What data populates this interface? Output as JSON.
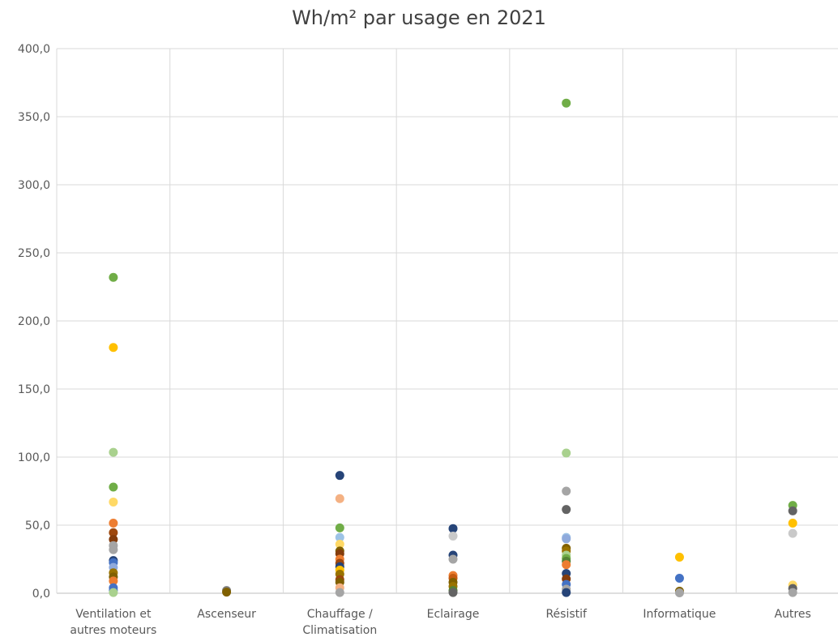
{
  "chart_data": {
    "type": "scatter",
    "title": "Wh/m² par usage en 2021",
    "xlabel": "",
    "ylabel": "",
    "ylim": [
      0,
      400
    ],
    "yticks": [
      "0,0",
      "50,0",
      "100,0",
      "150,0",
      "200,0",
      "250,0",
      "300,0",
      "350,0",
      "400,0"
    ],
    "ytick_values": [
      0,
      50,
      100,
      150,
      200,
      250,
      300,
      350,
      400
    ],
    "grid": true,
    "legend": "none",
    "categories": [
      [
        "Ventilation et",
        "autres moteurs"
      ],
      [
        "Ascenseur"
      ],
      [
        "Chauffage /",
        "Climatisation"
      ],
      [
        "Eclairage"
      ],
      [
        "Résistif"
      ],
      [
        "Informatique"
      ],
      [
        "Autres"
      ]
    ],
    "points": [
      {
        "category": 0,
        "y": 232,
        "color": "#70ad47"
      },
      {
        "category": 0,
        "y": 180.5,
        "color": "#ffc000"
      },
      {
        "category": 0,
        "y": 103.5,
        "color": "#a9d18e"
      },
      {
        "category": 0,
        "y": 78,
        "color": "#70ad47"
      },
      {
        "category": 0,
        "y": 67,
        "color": "#ffd966"
      },
      {
        "category": 0,
        "y": 51.5,
        "color": "#ed7d31"
      },
      {
        "category": 0,
        "y": 44.5,
        "color": "#9e480e"
      },
      {
        "category": 0,
        "y": 39.5,
        "color": "#843c0c"
      },
      {
        "category": 0,
        "y": 35,
        "color": "#a5a5a5"
      },
      {
        "category": 0,
        "y": 32,
        "color": "#a5a5a5"
      },
      {
        "category": 0,
        "y": 24,
        "color": "#264478"
      },
      {
        "category": 0,
        "y": 22.5,
        "color": "#4472c4"
      },
      {
        "category": 0,
        "y": 19,
        "color": "#8faadc"
      },
      {
        "category": 0,
        "y": 15,
        "color": "#997300"
      },
      {
        "category": 0,
        "y": 12,
        "color": "#806000"
      },
      {
        "category": 0,
        "y": 9,
        "color": "#ed7d31"
      },
      {
        "category": 0,
        "y": 4,
        "color": "#4472c4"
      },
      {
        "category": 0,
        "y": 2,
        "color": "#4472c4"
      },
      {
        "category": 0,
        "y": 0.5,
        "color": "#a9d18e"
      },
      {
        "category": 1,
        "y": 2,
        "color": "#7f7f7f"
      },
      {
        "category": 1,
        "y": 0.8,
        "color": "#806000"
      },
      {
        "category": 2,
        "y": 86.5,
        "color": "#264478"
      },
      {
        "category": 2,
        "y": 69.5,
        "color": "#f4b183"
      },
      {
        "category": 2,
        "y": 48,
        "color": "#70ad47"
      },
      {
        "category": 2,
        "y": 41,
        "color": "#9dc3e6"
      },
      {
        "category": 2,
        "y": 36,
        "color": "#ffd966"
      },
      {
        "category": 2,
        "y": 31,
        "color": "#806000"
      },
      {
        "category": 2,
        "y": 29,
        "color": "#843c0c"
      },
      {
        "category": 2,
        "y": 25,
        "color": "#ed7d31"
      },
      {
        "category": 2,
        "y": 22,
        "color": "#9e480e"
      },
      {
        "category": 2,
        "y": 19.5,
        "color": "#264478"
      },
      {
        "category": 2,
        "y": 17,
        "color": "#ffc000"
      },
      {
        "category": 2,
        "y": 14,
        "color": "#997300"
      },
      {
        "category": 2,
        "y": 10,
        "color": "#9e480e"
      },
      {
        "category": 2,
        "y": 8,
        "color": "#806000"
      },
      {
        "category": 2,
        "y": 4,
        "color": "#f4b183"
      },
      {
        "category": 2,
        "y": 0.5,
        "color": "#a5a5a5"
      },
      {
        "category": 3,
        "y": 47.5,
        "color": "#264478"
      },
      {
        "category": 3,
        "y": 42,
        "color": "#c9c9c9"
      },
      {
        "category": 3,
        "y": 28,
        "color": "#264478"
      },
      {
        "category": 3,
        "y": 25,
        "color": "#a5a5a5"
      },
      {
        "category": 3,
        "y": 13,
        "color": "#ed7d31"
      },
      {
        "category": 3,
        "y": 11,
        "color": "#c55a11"
      },
      {
        "category": 3,
        "y": 8,
        "color": "#806000"
      },
      {
        "category": 3,
        "y": 5,
        "color": "#997300"
      },
      {
        "category": 3,
        "y": 2,
        "color": "#548235"
      },
      {
        "category": 3,
        "y": 0.5,
        "color": "#636363"
      },
      {
        "category": 4,
        "y": 360,
        "color": "#70ad47"
      },
      {
        "category": 4,
        "y": 103,
        "color": "#a9d18e"
      },
      {
        "category": 4,
        "y": 75,
        "color": "#a5a5a5"
      },
      {
        "category": 4,
        "y": 61.5,
        "color": "#636363"
      },
      {
        "category": 4,
        "y": 41,
        "color": "#9dc3e6"
      },
      {
        "category": 4,
        "y": 40,
        "color": "#8faadc"
      },
      {
        "category": 4,
        "y": 33,
        "color": "#806000"
      },
      {
        "category": 4,
        "y": 31,
        "color": "#997300"
      },
      {
        "category": 4,
        "y": 28,
        "color": "#a9d18e"
      },
      {
        "category": 4,
        "y": 25.5,
        "color": "#70ad47"
      },
      {
        "category": 4,
        "y": 23.5,
        "color": "#548235"
      },
      {
        "category": 4,
        "y": 21,
        "color": "#ed7d31"
      },
      {
        "category": 4,
        "y": 14.5,
        "color": "#264478"
      },
      {
        "category": 4,
        "y": 10.5,
        "color": "#843c0c"
      },
      {
        "category": 4,
        "y": 6.5,
        "color": "#4472c4"
      },
      {
        "category": 4,
        "y": 3,
        "color": "#a5a5a5"
      },
      {
        "category": 4,
        "y": 0.5,
        "color": "#264478"
      },
      {
        "category": 5,
        "y": 26.5,
        "color": "#ffc000"
      },
      {
        "category": 5,
        "y": 11,
        "color": "#4472c4"
      },
      {
        "category": 5,
        "y": 1.5,
        "color": "#806000"
      },
      {
        "category": 5,
        "y": 0.3,
        "color": "#a5a5a5"
      },
      {
        "category": 6,
        "y": 64.5,
        "color": "#70ad47"
      },
      {
        "category": 6,
        "y": 60.5,
        "color": "#636363"
      },
      {
        "category": 6,
        "y": 51.5,
        "color": "#ffc000"
      },
      {
        "category": 6,
        "y": 44,
        "color": "#c9c9c9"
      },
      {
        "category": 6,
        "y": 6,
        "color": "#ffd966"
      },
      {
        "category": 6,
        "y": 3.5,
        "color": "#636363"
      },
      {
        "category": 6,
        "y": 0.5,
        "color": "#a5a5a5"
      }
    ]
  }
}
